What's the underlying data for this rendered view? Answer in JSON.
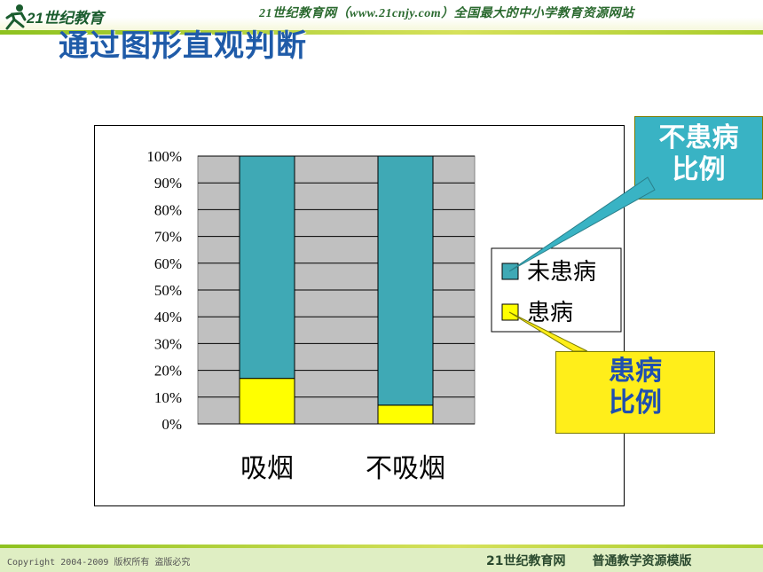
{
  "header": {
    "logo_text": "21世纪教育",
    "site_banner": "21世纪教育网（www.21cnjy.com）全国最大的中小学教育资源网站"
  },
  "page_title": "通过图形直观判断",
  "chart_data": {
    "type": "bar",
    "stacked": true,
    "percent": true,
    "title": "",
    "xlabel": "",
    "ylabel": "",
    "categories": [
      "吸烟",
      "不吸烟"
    ],
    "series": [
      {
        "name": "患病",
        "color": "#ffff00",
        "values": [
          17,
          7
        ]
      },
      {
        "name": "未患病",
        "color": "#3fa9b5",
        "values": [
          83,
          93
        ]
      }
    ],
    "ylim": [
      0,
      100
    ],
    "yticks": [
      "0%",
      "10%",
      "20%",
      "30%",
      "40%",
      "50%",
      "60%",
      "70%",
      "80%",
      "90%",
      "100%"
    ],
    "grid": true,
    "plot_background": "#c0c0c0",
    "legend": {
      "placement": "right",
      "items": [
        "未患病",
        "患病"
      ]
    }
  },
  "callouts": {
    "not_sick": {
      "line1": "不患病",
      "line2": "比例"
    },
    "sick": {
      "line1": "患病",
      "line2": "比例"
    }
  },
  "footer": {
    "copyright": "Copyright 2004-2009 版权所有 盗版必究",
    "site": "21世纪教育网",
    "template": "普通教学资源模版"
  },
  "colors": {
    "title_blue": "#1f5ba8",
    "teal": "#39b3c4",
    "yellow": "#ffee1a"
  }
}
